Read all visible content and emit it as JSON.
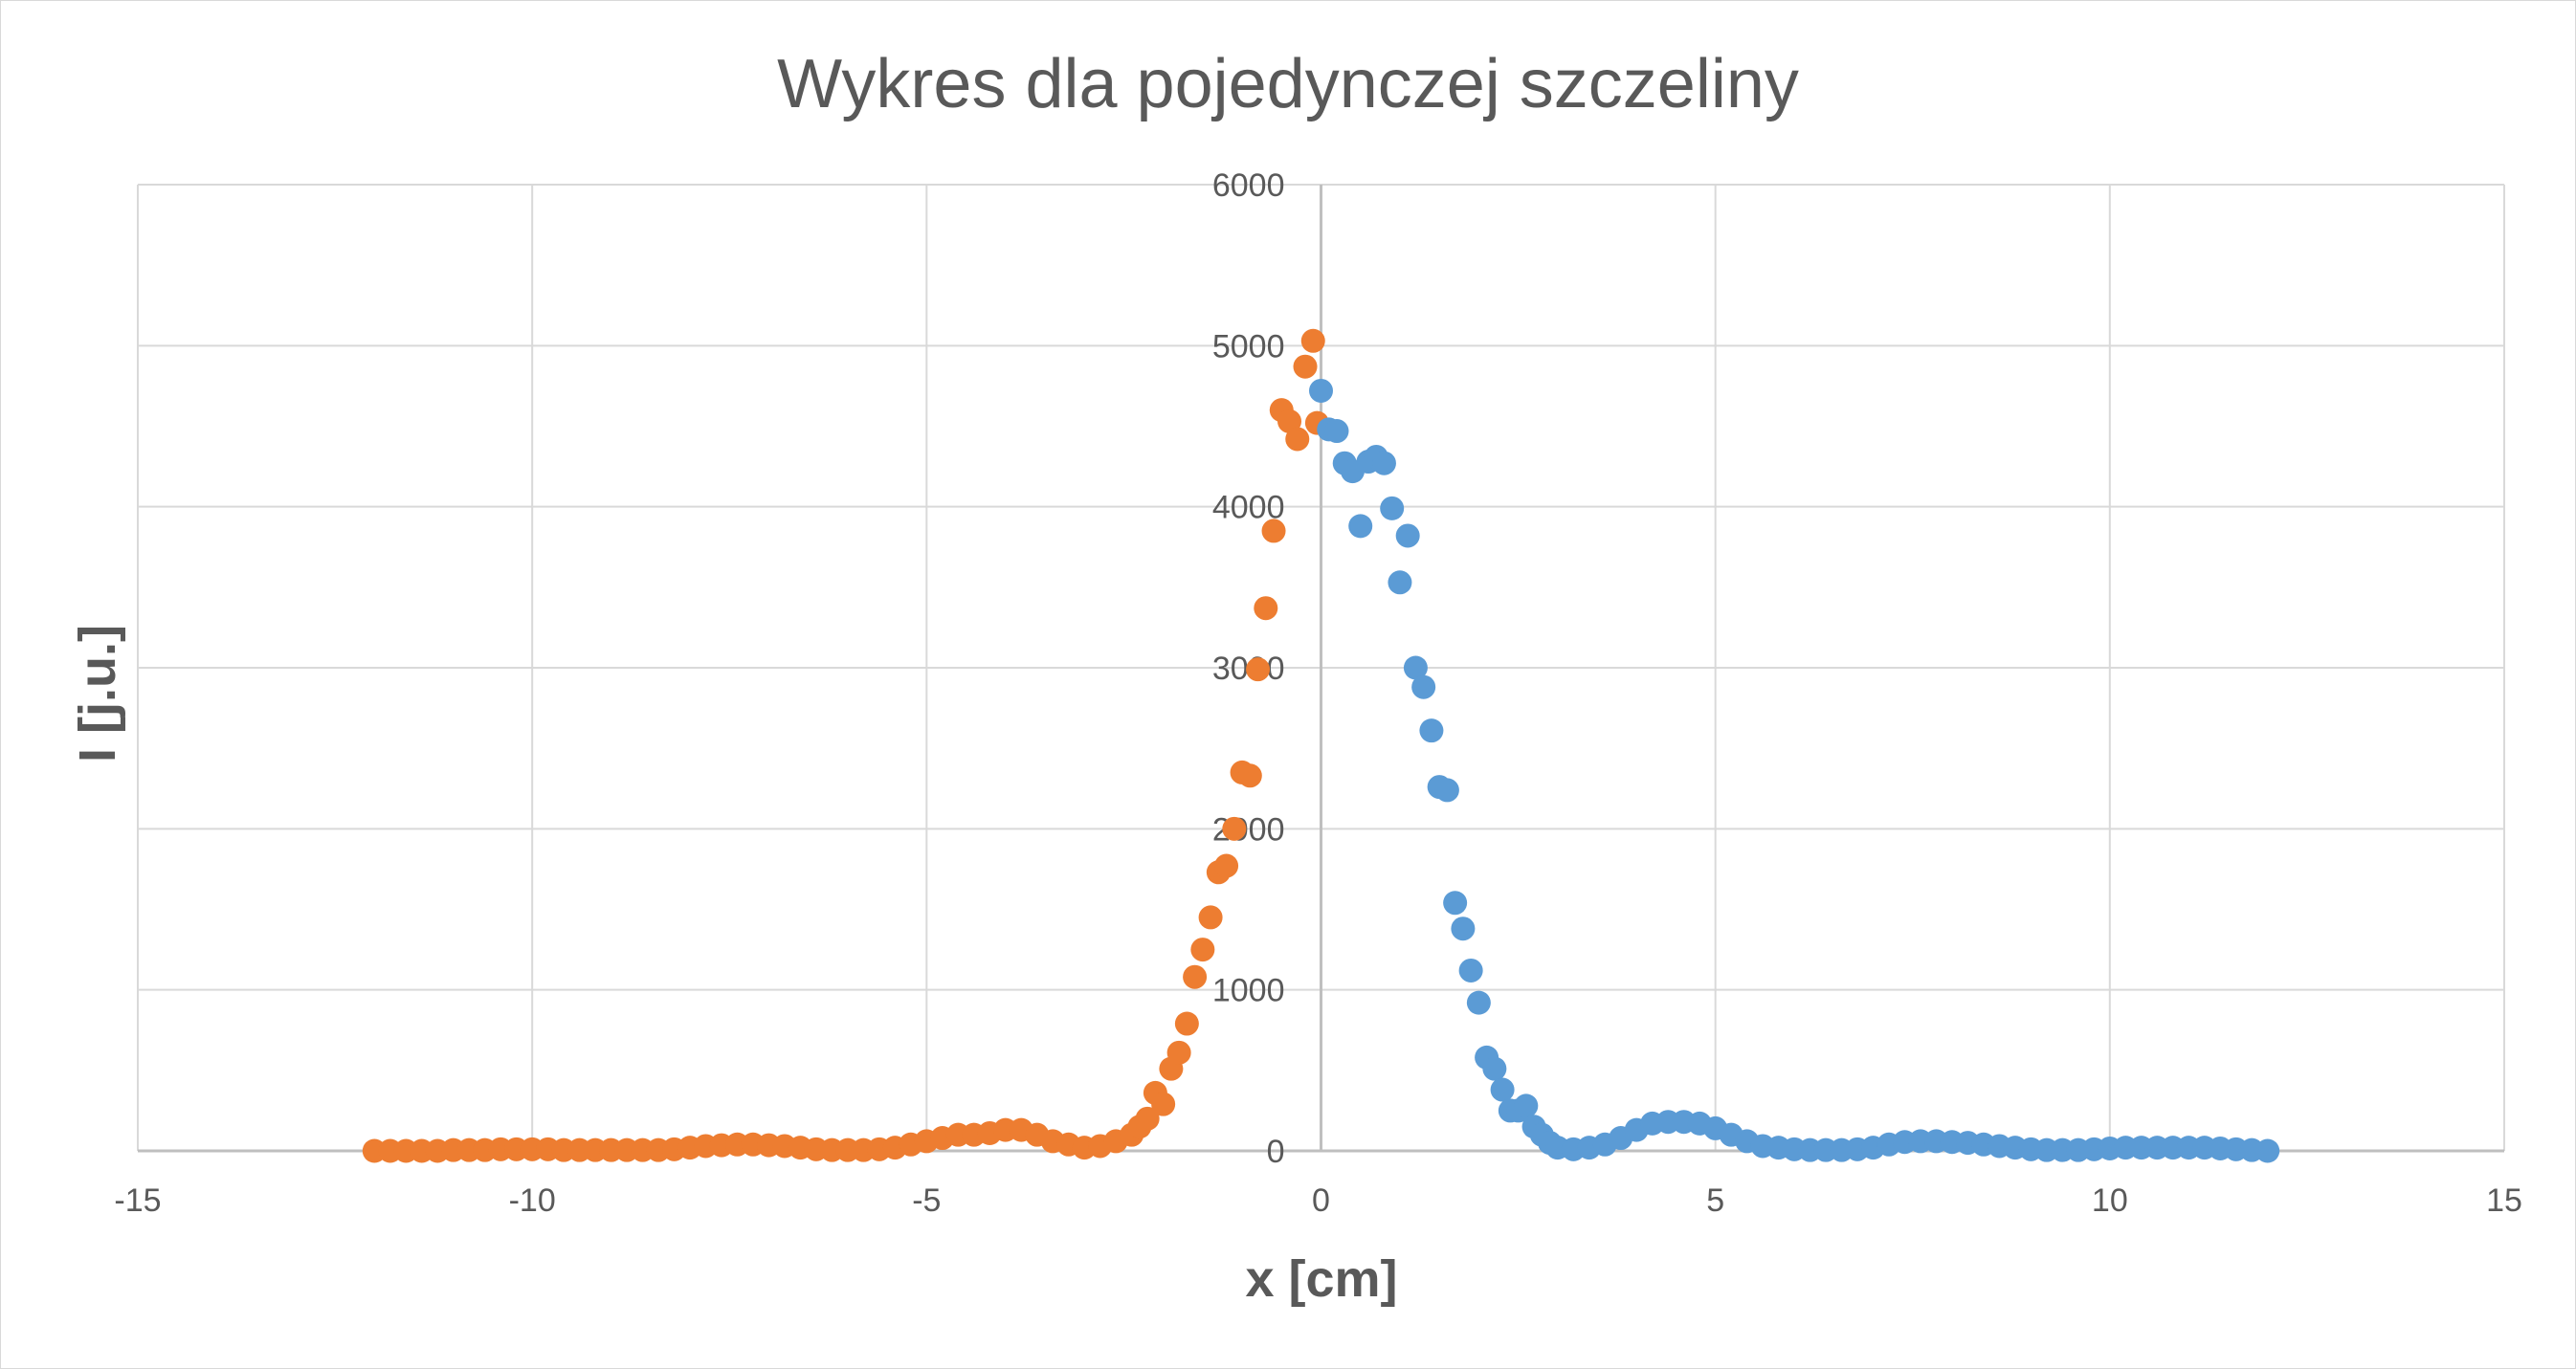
{
  "chart_data": {
    "type": "scatter",
    "title": "Wykres dla pojedynczej szczeliny",
    "xlabel": "x [cm]",
    "ylabel": "I [j.u.]",
    "xlim": [
      -15,
      15
    ],
    "ylim": [
      0,
      6000
    ],
    "xticks": [
      -15,
      -10,
      -5,
      0,
      5,
      10,
      15
    ],
    "yticks": [
      0,
      1000,
      2000,
      3000,
      4000,
      5000,
      6000
    ],
    "xtick_labels": [
      "-15",
      "-10",
      "-5",
      "0",
      "5",
      "10",
      "15"
    ],
    "ytick_labels": [
      "0",
      "1000",
      "2000",
      "3000",
      "4000",
      "5000",
      "6000"
    ],
    "grid": true,
    "legend": "none",
    "series": [
      {
        "color": "#ed7d31",
        "points": [
          [
            -12.0,
            0
          ],
          [
            -11.8,
            0
          ],
          [
            -11.6,
            0
          ],
          [
            -11.4,
            0
          ],
          [
            -11.2,
            0
          ],
          [
            -11.0,
            5
          ],
          [
            -10.8,
            5
          ],
          [
            -10.6,
            5
          ],
          [
            -10.4,
            10
          ],
          [
            -10.2,
            10
          ],
          [
            -10.0,
            10
          ],
          [
            -9.8,
            10
          ],
          [
            -9.6,
            5
          ],
          [
            -9.4,
            5
          ],
          [
            -9.2,
            5
          ],
          [
            -9.0,
            5
          ],
          [
            -8.8,
            5
          ],
          [
            -8.6,
            5
          ],
          [
            -8.4,
            5
          ],
          [
            -8.2,
            10
          ],
          [
            -8.0,
            20
          ],
          [
            -7.8,
            30
          ],
          [
            -7.6,
            35
          ],
          [
            -7.4,
            40
          ],
          [
            -7.2,
            40
          ],
          [
            -7.0,
            35
          ],
          [
            -6.8,
            30
          ],
          [
            -6.6,
            20
          ],
          [
            -6.4,
            10
          ],
          [
            -6.2,
            5
          ],
          [
            -6.0,
            5
          ],
          [
            -5.8,
            5
          ],
          [
            -5.6,
            10
          ],
          [
            -5.4,
            20
          ],
          [
            -5.2,
            40
          ],
          [
            -5.0,
            60
          ],
          [
            -4.8,
            80
          ],
          [
            -4.6,
            100
          ],
          [
            -4.4,
            100
          ],
          [
            -4.2,
            110
          ],
          [
            -4.0,
            130
          ],
          [
            -3.8,
            130
          ],
          [
            -3.6,
            100
          ],
          [
            -3.4,
            60
          ],
          [
            -3.2,
            40
          ],
          [
            -3.0,
            20
          ],
          [
            -2.8,
            30
          ],
          [
            -2.6,
            60
          ],
          [
            -2.4,
            100
          ],
          [
            -2.3,
            150
          ],
          [
            -2.2,
            200
          ],
          [
            -2.1,
            360
          ],
          [
            -2.0,
            290
          ],
          [
            -1.9,
            510
          ],
          [
            -1.8,
            610
          ],
          [
            -1.7,
            790
          ],
          [
            -1.6,
            1080
          ],
          [
            -1.5,
            1250
          ],
          [
            -1.4,
            1450
          ],
          [
            -1.3,
            1730
          ],
          [
            -1.2,
            1770
          ],
          [
            -1.1,
            2000
          ],
          [
            -1.0,
            2350
          ],
          [
            -0.9,
            2330
          ],
          [
            -0.8,
            2990
          ],
          [
            -0.7,
            3370
          ],
          [
            -0.6,
            3850
          ],
          [
            -0.5,
            4600
          ],
          [
            -0.4,
            4530
          ],
          [
            -0.3,
            4420
          ],
          [
            -0.2,
            4870
          ],
          [
            -0.1,
            5030
          ],
          [
            -0.05,
            4520
          ]
        ]
      },
      {
        "color": "#5b9bd5",
        "points": [
          [
            0.0,
            4720
          ],
          [
            0.1,
            4480
          ],
          [
            0.2,
            4470
          ],
          [
            0.3,
            4270
          ],
          [
            0.4,
            4220
          ],
          [
            0.5,
            3880
          ],
          [
            0.6,
            4280
          ],
          [
            0.7,
            4310
          ],
          [
            0.8,
            4270
          ],
          [
            0.9,
            3990
          ],
          [
            1.0,
            3530
          ],
          [
            1.1,
            3820
          ],
          [
            1.2,
            3000
          ],
          [
            1.3,
            2880
          ],
          [
            1.4,
            2610
          ],
          [
            1.5,
            2260
          ],
          [
            1.6,
            2240
          ],
          [
            1.7,
            1540
          ],
          [
            1.8,
            1380
          ],
          [
            1.9,
            1120
          ],
          [
            2.0,
            920
          ],
          [
            2.1,
            580
          ],
          [
            2.2,
            510
          ],
          [
            2.3,
            380
          ],
          [
            2.4,
            250
          ],
          [
            2.5,
            250
          ],
          [
            2.6,
            280
          ],
          [
            2.7,
            150
          ],
          [
            2.8,
            100
          ],
          [
            2.9,
            50
          ],
          [
            3.0,
            20
          ],
          [
            3.2,
            10
          ],
          [
            3.4,
            20
          ],
          [
            3.6,
            40
          ],
          [
            3.8,
            80
          ],
          [
            4.0,
            130
          ],
          [
            4.2,
            170
          ],
          [
            4.4,
            180
          ],
          [
            4.6,
            180
          ],
          [
            4.8,
            170
          ],
          [
            5.0,
            140
          ],
          [
            5.2,
            100
          ],
          [
            5.4,
            60
          ],
          [
            5.6,
            30
          ],
          [
            5.8,
            20
          ],
          [
            6.0,
            10
          ],
          [
            6.2,
            5
          ],
          [
            6.4,
            5
          ],
          [
            6.6,
            5
          ],
          [
            6.8,
            10
          ],
          [
            7.0,
            20
          ],
          [
            7.2,
            40
          ],
          [
            7.4,
            55
          ],
          [
            7.6,
            60
          ],
          [
            7.8,
            60
          ],
          [
            8.0,
            55
          ],
          [
            8.2,
            50
          ],
          [
            8.4,
            40
          ],
          [
            8.6,
            30
          ],
          [
            8.8,
            20
          ],
          [
            9.0,
            10
          ],
          [
            9.2,
            5
          ],
          [
            9.4,
            5
          ],
          [
            9.6,
            5
          ],
          [
            9.8,
            10
          ],
          [
            10.0,
            15
          ],
          [
            10.2,
            20
          ],
          [
            10.4,
            20
          ],
          [
            10.6,
            20
          ],
          [
            10.8,
            20
          ],
          [
            11.0,
            20
          ],
          [
            11.2,
            20
          ],
          [
            11.4,
            15
          ],
          [
            11.6,
            10
          ],
          [
            11.8,
            5
          ],
          [
            12.0,
            0
          ]
        ]
      }
    ]
  }
}
